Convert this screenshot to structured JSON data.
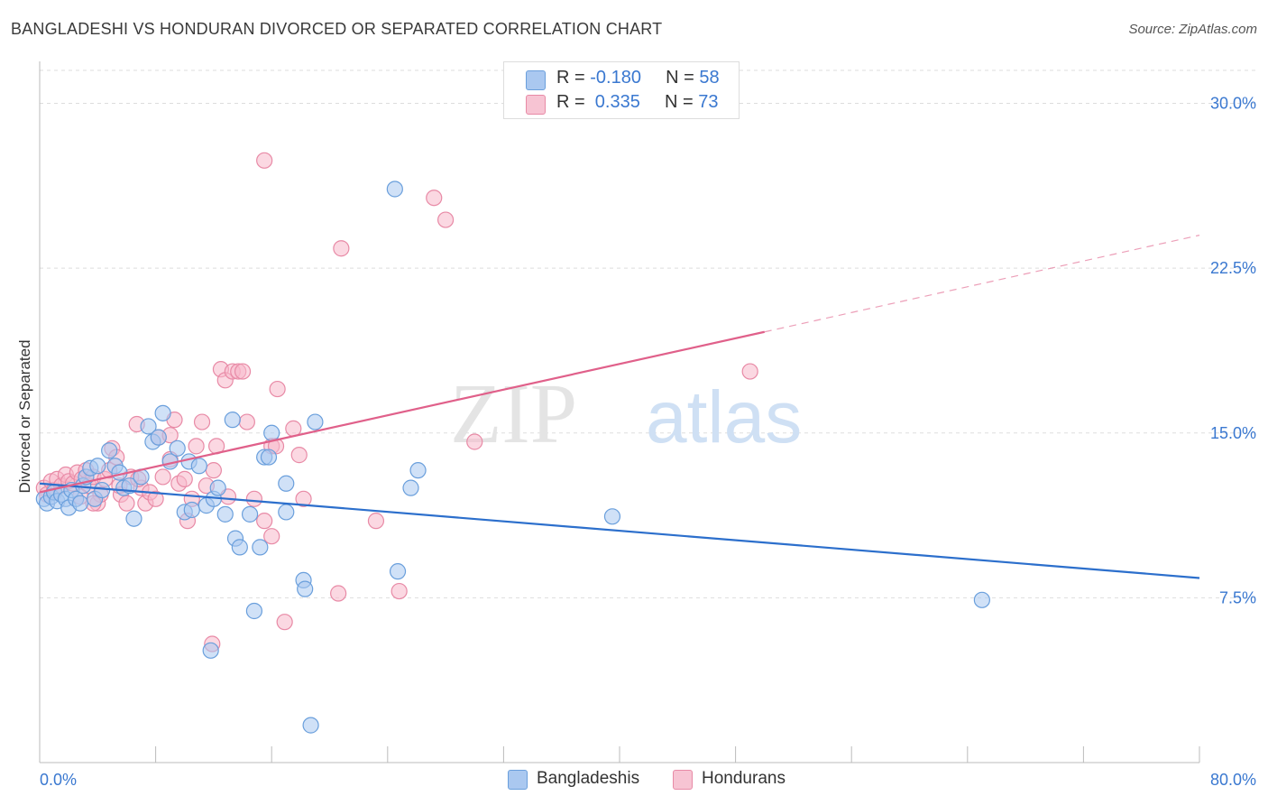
{
  "header": {
    "title": "BANGLADESHI VS HONDURAN DIVORCED OR SEPARATED CORRELATION CHART",
    "source": "Source: ZipAtlas.com"
  },
  "watermark": {
    "zip": "ZIP",
    "atlas": "atlas"
  },
  "legend_top": {
    "rows": [
      {
        "r_label": "R = ",
        "r_value": "-0.180",
        "n_label": "N = ",
        "n_value": "58"
      },
      {
        "r_label": "R = ",
        "r_value": " 0.335",
        "n_label": "N = ",
        "n_value": "73"
      }
    ]
  },
  "legend_bottom": {
    "items": [
      "Bangladeshis",
      "Hondurans"
    ]
  },
  "colors": {
    "blue_fill": "#aac8f0",
    "blue_stroke": "#6a9fdc",
    "blue_line": "#2c6fcc",
    "pink_fill": "#f7b8cb",
    "pink_stroke": "#e88aa6",
    "pink_line": "#e0608a",
    "axis_text": "#3a78d0",
    "grid": "#dddddd"
  },
  "chart_data": {
    "type": "scatter",
    "title": "BANGLADESHI VS HONDURAN DIVORCED OR SEPARATED CORRELATION CHART",
    "xlabel": "",
    "ylabel": "Divorced or Separated",
    "xlim": [
      0,
      80
    ],
    "ylim": [
      0,
      31.5
    ],
    "x_tick_labels": [
      "0.0%",
      "80.0%"
    ],
    "y_ticks": [
      7.5,
      15.0,
      22.5,
      30.0
    ],
    "y_tick_labels": [
      "7.5%",
      "15.0%",
      "22.5%",
      "30.0%"
    ],
    "grid": true,
    "series": [
      {
        "name": "Bangladeshis",
        "r": -0.18,
        "n": 58,
        "trend": {
          "x0": 0,
          "y0": 12.7,
          "x1": 80,
          "y1": 8.4
        },
        "points": [
          [
            0.3,
            12.0
          ],
          [
            0.5,
            11.8
          ],
          [
            0.8,
            12.1
          ],
          [
            1.0,
            12.3
          ],
          [
            1.2,
            11.9
          ],
          [
            1.5,
            12.2
          ],
          [
            1.8,
            12.0
          ],
          [
            2.0,
            11.6
          ],
          [
            2.2,
            12.4
          ],
          [
            2.5,
            12.0
          ],
          [
            2.8,
            11.8
          ],
          [
            3.0,
            12.6
          ],
          [
            3.2,
            13.0
          ],
          [
            3.5,
            13.4
          ],
          [
            3.8,
            12.0
          ],
          [
            4.0,
            13.5
          ],
          [
            4.3,
            12.4
          ],
          [
            4.8,
            14.2
          ],
          [
            5.2,
            13.5
          ],
          [
            5.5,
            13.2
          ],
          [
            5.8,
            12.5
          ],
          [
            6.2,
            12.6
          ],
          [
            6.5,
            11.1
          ],
          [
            7.0,
            13.0
          ],
          [
            7.5,
            15.3
          ],
          [
            7.8,
            14.6
          ],
          [
            8.2,
            14.8
          ],
          [
            8.5,
            15.9
          ],
          [
            9.0,
            13.7
          ],
          [
            9.5,
            14.3
          ],
          [
            10.0,
            11.4
          ],
          [
            10.3,
            13.7
          ],
          [
            10.5,
            11.5
          ],
          [
            11.0,
            13.5
          ],
          [
            11.5,
            11.7
          ],
          [
            12.0,
            12.0
          ],
          [
            12.3,
            12.5
          ],
          [
            12.8,
            11.3
          ],
          [
            13.3,
            15.6
          ],
          [
            13.5,
            10.2
          ],
          [
            13.8,
            9.8
          ],
          [
            14.5,
            11.3
          ],
          [
            15.2,
            9.8
          ],
          [
            15.5,
            13.9
          ],
          [
            15.8,
            13.9
          ],
          [
            16.0,
            15.0
          ],
          [
            17.0,
            12.7
          ],
          [
            17.0,
            11.4
          ],
          [
            18.2,
            8.3
          ],
          [
            18.3,
            7.9
          ],
          [
            18.7,
            1.7
          ],
          [
            19.0,
            15.5
          ],
          [
            24.5,
            26.1
          ],
          [
            24.7,
            8.7
          ],
          [
            25.6,
            12.5
          ],
          [
            26.1,
            13.3
          ],
          [
            39.5,
            11.2
          ],
          [
            65.0,
            7.4
          ],
          [
            11.8,
            5.1
          ],
          [
            14.8,
            6.9
          ]
        ]
      },
      {
        "name": "Hondurans",
        "r": 0.335,
        "n": 73,
        "trend": {
          "x0": 0,
          "y0": 12.3,
          "x1": 50,
          "y1": 19.6,
          "dash_to_x": 80,
          "dash_to_y": 24.0
        },
        "points": [
          [
            0.3,
            12.5
          ],
          [
            0.5,
            12.2
          ],
          [
            0.8,
            12.8
          ],
          [
            1.0,
            12.4
          ],
          [
            1.2,
            12.9
          ],
          [
            1.5,
            12.6
          ],
          [
            1.8,
            13.1
          ],
          [
            2.0,
            12.8
          ],
          [
            2.3,
            12.7
          ],
          [
            2.6,
            13.2
          ],
          [
            2.9,
            12.9
          ],
          [
            3.2,
            13.3
          ],
          [
            3.4,
            12.6
          ],
          [
            3.7,
            13.0
          ],
          [
            4.0,
            11.8
          ],
          [
            4.2,
            12.2
          ],
          [
            4.5,
            12.9
          ],
          [
            4.8,
            13.3
          ],
          [
            5.0,
            14.3
          ],
          [
            5.3,
            13.9
          ],
          [
            5.6,
            12.2
          ],
          [
            6.0,
            11.8
          ],
          [
            6.3,
            13.0
          ],
          [
            6.7,
            15.4
          ],
          [
            7.0,
            12.5
          ],
          [
            7.3,
            11.8
          ],
          [
            7.6,
            12.3
          ],
          [
            8.0,
            12.0
          ],
          [
            8.2,
            14.8
          ],
          [
            8.5,
            13.0
          ],
          [
            9.0,
            14.9
          ],
          [
            9.3,
            15.6
          ],
          [
            9.6,
            12.7
          ],
          [
            10.0,
            12.9
          ],
          [
            10.2,
            11.0
          ],
          [
            10.5,
            12.0
          ],
          [
            10.8,
            14.4
          ],
          [
            11.2,
            15.5
          ],
          [
            11.5,
            12.6
          ],
          [
            12.0,
            13.3
          ],
          [
            12.2,
            14.4
          ],
          [
            12.5,
            17.9
          ],
          [
            12.8,
            17.4
          ],
          [
            13.3,
            17.8
          ],
          [
            13.7,
            17.8
          ],
          [
            14.0,
            17.8
          ],
          [
            14.3,
            15.5
          ],
          [
            14.8,
            12.0
          ],
          [
            15.5,
            11.0
          ],
          [
            16.0,
            14.4
          ],
          [
            16.3,
            14.4
          ],
          [
            15.5,
            27.4
          ],
          [
            16.4,
            17.0
          ],
          [
            16.0,
            10.3
          ],
          [
            16.9,
            6.4
          ],
          [
            17.5,
            15.2
          ],
          [
            17.9,
            14.0
          ],
          [
            18.2,
            12.0
          ],
          [
            20.6,
            7.7
          ],
          [
            20.8,
            23.4
          ],
          [
            23.2,
            11.0
          ],
          [
            24.8,
            7.8
          ],
          [
            27.2,
            25.7
          ],
          [
            28.0,
            24.7
          ],
          [
            30.0,
            14.6
          ],
          [
            49.0,
            17.8
          ],
          [
            11.9,
            5.4
          ],
          [
            3.7,
            11.8
          ],
          [
            6.8,
            12.9
          ],
          [
            9.0,
            13.8
          ],
          [
            5.5,
            12.6
          ],
          [
            2.8,
            12.1
          ],
          [
            13.0,
            12.1
          ]
        ]
      }
    ]
  }
}
